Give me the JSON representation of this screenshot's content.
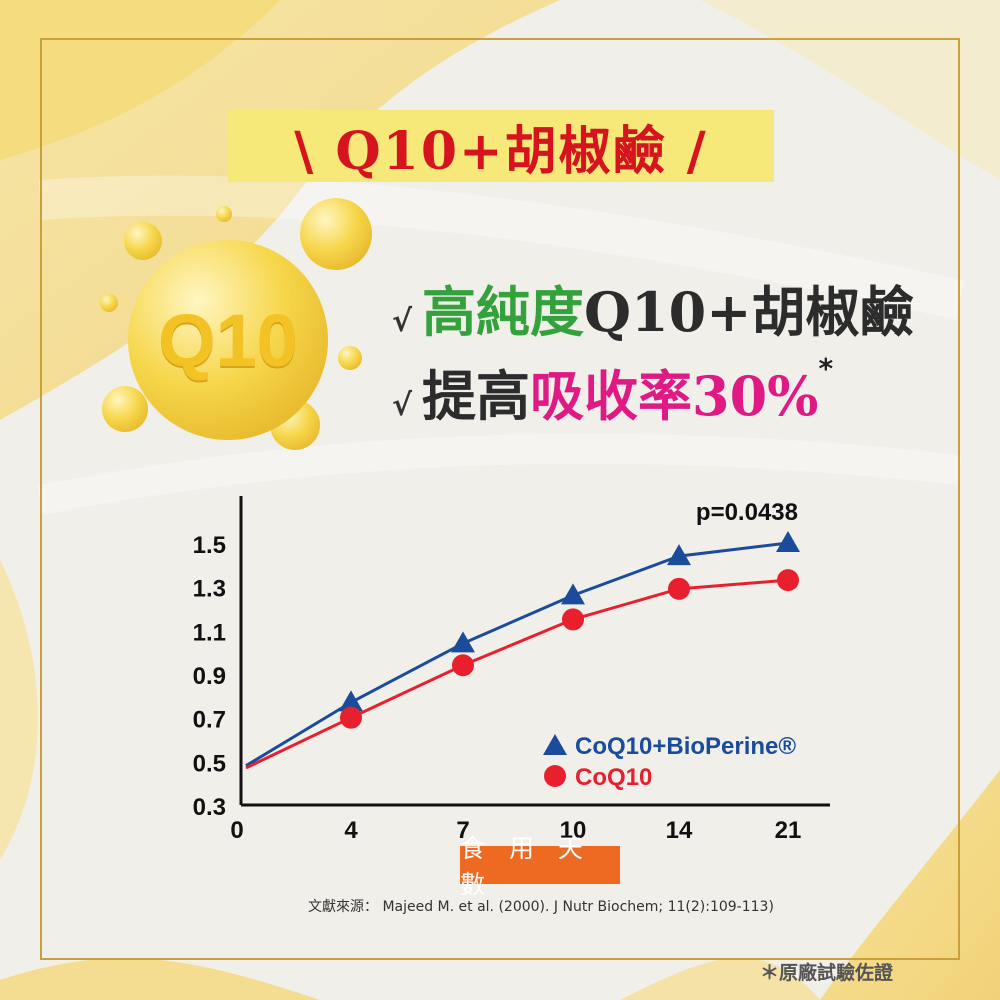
{
  "title": "\\ Q10+胡椒鹼 /",
  "badge": "Q10",
  "claims": {
    "tick": "√",
    "line1_green": "高純度",
    "line1_dark": "Q10+胡椒鹼",
    "line2_dark": "提高",
    "line2_magenta": "吸收率30%",
    "line2_star": "*"
  },
  "colors": {
    "accent_red": "#d5141f",
    "green": "#34a23c",
    "magenta": "#e01a84",
    "series_blue": "#1b4c9c",
    "series_red": "#e8202e",
    "xcap_bg": "#ee6a22",
    "title_bg": "#f6e879",
    "frame": "#c9a03c"
  },
  "chart_data": {
    "type": "line",
    "x": [
      0,
      4,
      7,
      10,
      14,
      21
    ],
    "yticks": [
      "1.5",
      "1.3",
      "1.1",
      "0.9",
      "0.7",
      "0.5",
      "0.3"
    ],
    "xticks": [
      "0",
      "4",
      "7",
      "10",
      "14",
      "21"
    ],
    "ylim": [
      0.3,
      1.5
    ],
    "annotation": "p=0.0438",
    "xlabel": "食 用 天 數",
    "legend_position": "bottom-right",
    "series": [
      {
        "name": "CoQ10+BioPerine®",
        "marker": "triangle",
        "color": "#1b4c9c",
        "values": [
          0.48,
          0.77,
          1.04,
          1.26,
          1.44,
          1.5
        ]
      },
      {
        "name": "CoQ10",
        "marker": "circle",
        "color": "#e8202e",
        "values": [
          0.47,
          0.7,
          0.94,
          1.15,
          1.29,
          1.33
        ]
      }
    ]
  },
  "source": "文獻來源：  Majeed M. et al. (2000). J Nutr Biochem; 11(2):109-113)",
  "note": "＊原廠試驗佐證"
}
